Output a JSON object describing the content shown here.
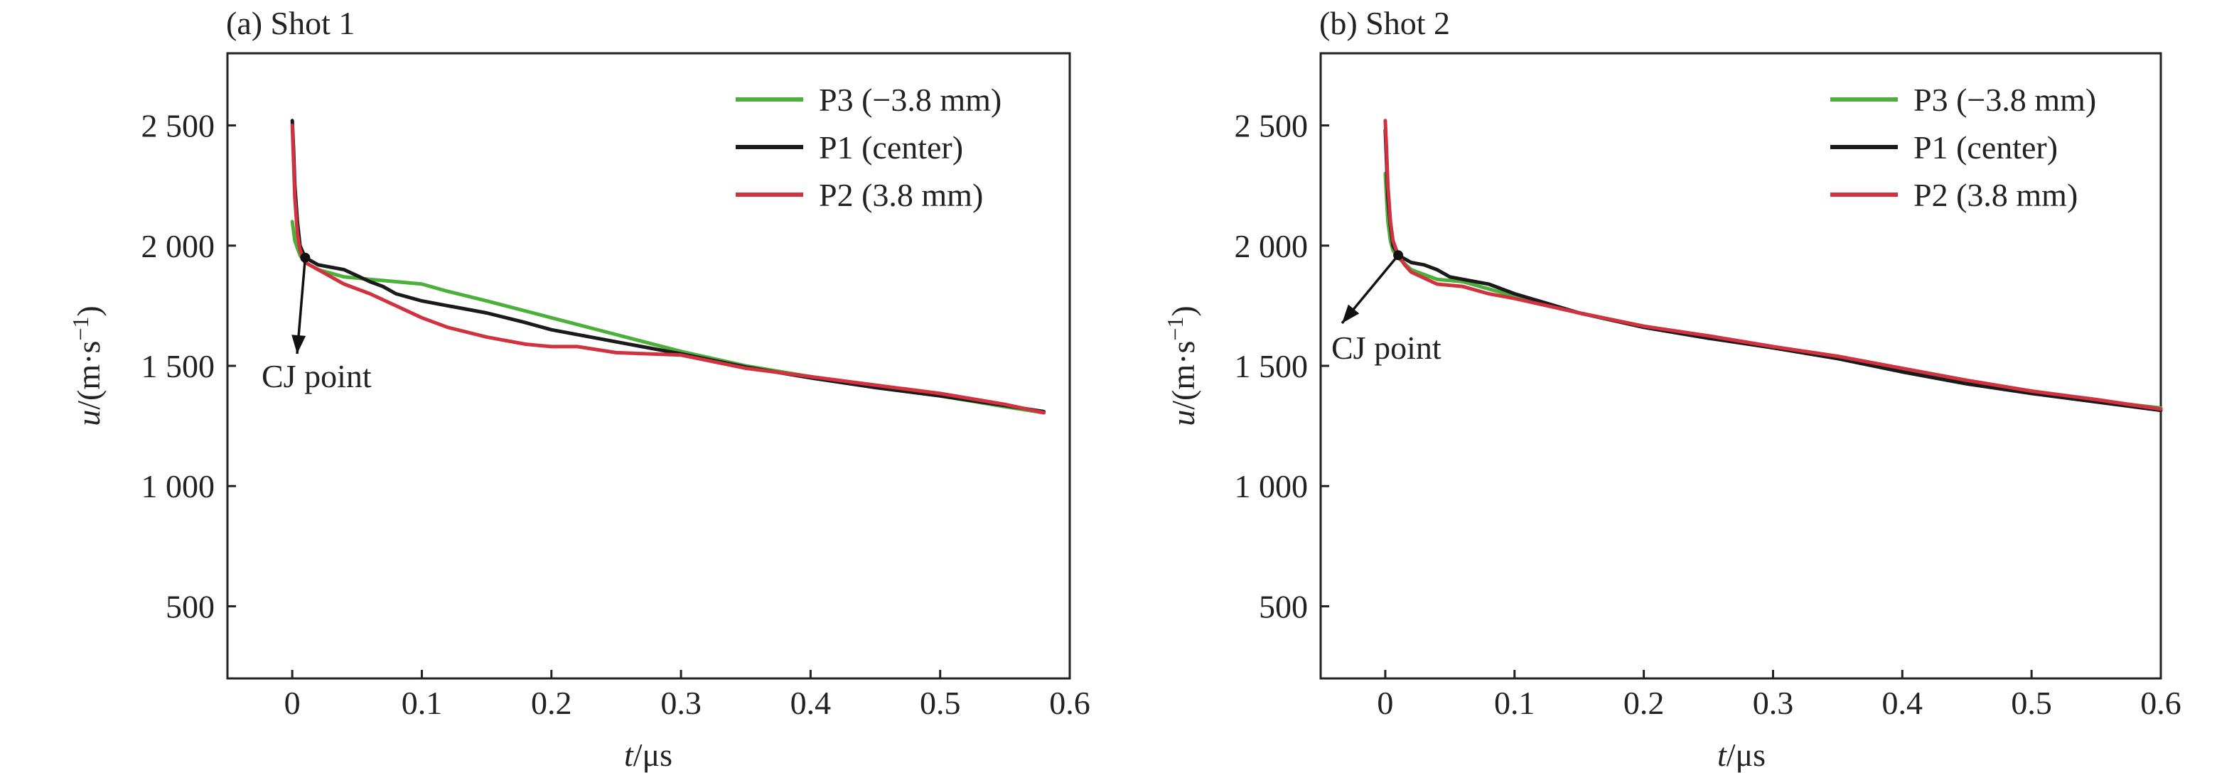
{
  "colors": {
    "P3": "#4caf3a",
    "P1": "#1a1a1a",
    "P2": "#d0333f",
    "axis": "#222222"
  },
  "chart_data": [
    {
      "type": "line",
      "panel_label": "(a) Shot 1",
      "xlabel_var": "t",
      "xlabel_unit": "/μs",
      "ylabel_var": "u",
      "ylabel_unit": "/(m·s",
      "ylabel_exp": "−1",
      "ylabel_close": ")",
      "xlim": [
        -0.05,
        0.6
      ],
      "ylim": [
        200,
        2800
      ],
      "xticks": [
        0,
        0.1,
        0.2,
        0.3,
        0.4,
        0.5,
        0.6
      ],
      "xtick_labels": [
        "0",
        "0.1",
        "0.2",
        "0.3",
        "0.4",
        "0.5",
        "0.6"
      ],
      "yticks": [
        500,
        1000,
        1500,
        2000,
        2500
      ],
      "ytick_labels": [
        "500",
        "1 000",
        "1 500",
        "2 000",
        "2 500"
      ],
      "legend_position": "top-right",
      "annotation": {
        "text": "CJ point",
        "x": 0.01,
        "y": 1950
      },
      "series": [
        {
          "name": "P3 (−3.8 mm)",
          "color_key": "P3",
          "x": [
            0,
            0.002,
            0.004,
            0.006,
            0.01,
            0.02,
            0.04,
            0.06,
            0.08,
            0.1,
            0.12,
            0.15,
            0.2,
            0.25,
            0.3,
            0.35,
            0.4,
            0.45,
            0.5,
            0.55,
            0.58
          ],
          "y": [
            2100,
            2020,
            1990,
            1960,
            1930,
            1900,
            1870,
            1860,
            1850,
            1840,
            1810,
            1770,
            1700,
            1630,
            1560,
            1500,
            1455,
            1410,
            1375,
            1330,
            1305
          ]
        },
        {
          "name": "P1 (center)",
          "color_key": "P1",
          "x": [
            0,
            0.001,
            0.002,
            0.004,
            0.006,
            0.01,
            0.02,
            0.04,
            0.06,
            0.07,
            0.08,
            0.1,
            0.12,
            0.15,
            0.18,
            0.2,
            0.25,
            0.3,
            0.35,
            0.4,
            0.45,
            0.5,
            0.55,
            0.58
          ],
          "y": [
            2520,
            2400,
            2250,
            2100,
            2000,
            1950,
            1920,
            1900,
            1850,
            1830,
            1800,
            1770,
            1750,
            1720,
            1680,
            1650,
            1600,
            1550,
            1495,
            1450,
            1410,
            1375,
            1335,
            1310
          ]
        },
        {
          "name": "P2 (3.8 mm)",
          "color_key": "P2",
          "x": [
            0,
            0.001,
            0.002,
            0.004,
            0.006,
            0.01,
            0.02,
            0.04,
            0.06,
            0.08,
            0.1,
            0.12,
            0.15,
            0.18,
            0.2,
            0.22,
            0.25,
            0.3,
            0.35,
            0.4,
            0.45,
            0.5,
            0.55,
            0.58
          ],
          "y": [
            2500,
            2350,
            2200,
            2050,
            1980,
            1930,
            1900,
            1840,
            1800,
            1750,
            1700,
            1660,
            1620,
            1590,
            1580,
            1580,
            1555,
            1545,
            1490,
            1455,
            1420,
            1385,
            1340,
            1305
          ]
        }
      ]
    },
    {
      "type": "line",
      "panel_label": "(b) Shot 2",
      "xlabel_var": "t",
      "xlabel_unit": "/μs",
      "ylabel_var": "u",
      "ylabel_unit": "/(m·s",
      "ylabel_exp": "−1",
      "ylabel_close": ")",
      "xlim": [
        -0.05,
        0.6
      ],
      "ylim": [
        200,
        2800
      ],
      "xticks": [
        0,
        0.1,
        0.2,
        0.3,
        0.4,
        0.5,
        0.6
      ],
      "xtick_labels": [
        "0",
        "0.1",
        "0.2",
        "0.3",
        "0.4",
        "0.5",
        "0.6"
      ],
      "yticks": [
        500,
        1000,
        1500,
        2000,
        2500
      ],
      "ytick_labels": [
        "500",
        "1 000",
        "1 500",
        "2 000",
        "2 500"
      ],
      "legend_position": "top-right",
      "annotation": {
        "text": "CJ point",
        "x": 0.01,
        "y": 1960
      },
      "series": [
        {
          "name": "P3 (−3.8 mm)",
          "color_key": "P3",
          "x": [
            0,
            0.001,
            0.002,
            0.004,
            0.006,
            0.01,
            0.02,
            0.04,
            0.06,
            0.08,
            0.1,
            0.15,
            0.2,
            0.25,
            0.3,
            0.35,
            0.4,
            0.45,
            0.5,
            0.55,
            0.6
          ],
          "y": [
            2300,
            2200,
            2100,
            2020,
            1980,
            1950,
            1900,
            1860,
            1850,
            1820,
            1790,
            1720,
            1665,
            1620,
            1575,
            1530,
            1480,
            1430,
            1395,
            1355,
            1325
          ]
        },
        {
          "name": "P1 (center)",
          "color_key": "P1",
          "x": [
            0,
            0.001,
            0.002,
            0.004,
            0.006,
            0.01,
            0.02,
            0.03,
            0.04,
            0.05,
            0.06,
            0.08,
            0.1,
            0.15,
            0.2,
            0.25,
            0.3,
            0.35,
            0.4,
            0.45,
            0.5,
            0.55,
            0.6
          ],
          "y": [
            2480,
            2350,
            2200,
            2080,
            2000,
            1960,
            1930,
            1920,
            1900,
            1870,
            1860,
            1840,
            1800,
            1720,
            1660,
            1615,
            1575,
            1530,
            1475,
            1425,
            1385,
            1350,
            1315
          ]
        },
        {
          "name": "P2 (3.8 mm)",
          "color_key": "P2",
          "x": [
            0,
            0.001,
            0.002,
            0.004,
            0.006,
            0.01,
            0.015,
            0.02,
            0.04,
            0.06,
            0.08,
            0.1,
            0.15,
            0.2,
            0.25,
            0.3,
            0.35,
            0.4,
            0.45,
            0.5,
            0.55,
            0.6
          ],
          "y": [
            2520,
            2400,
            2250,
            2100,
            2020,
            1960,
            1920,
            1890,
            1840,
            1830,
            1800,
            1780,
            1720,
            1665,
            1625,
            1580,
            1540,
            1490,
            1440,
            1395,
            1360,
            1320
          ]
        }
      ]
    }
  ]
}
